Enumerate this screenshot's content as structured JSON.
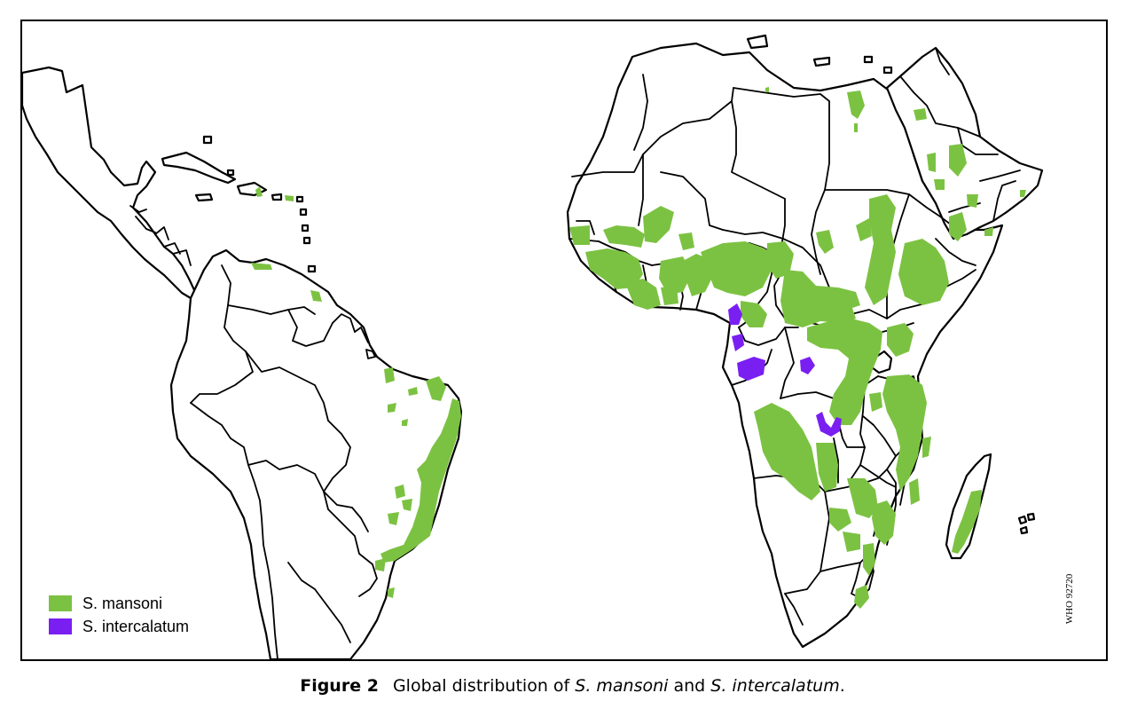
{
  "map": {
    "colors": {
      "mansoni": "#7cc242",
      "intercalatum": "#7a1ff2",
      "land": "#ffffff",
      "border": "#000000"
    }
  },
  "legend": {
    "items": [
      {
        "label": "S. mansoni",
        "color": "#7cc242"
      },
      {
        "label": "S. intercalatum",
        "color": "#7a1ff2"
      }
    ]
  },
  "stamp": {
    "text": "WHO 92720"
  },
  "caption": {
    "figure_label": "Figure 2",
    "text_prefix": "Global distribution of ",
    "species_1": "S. mansoni",
    "conjunction": " and ",
    "species_2": "S. intercalatum",
    "text_suffix": "."
  }
}
